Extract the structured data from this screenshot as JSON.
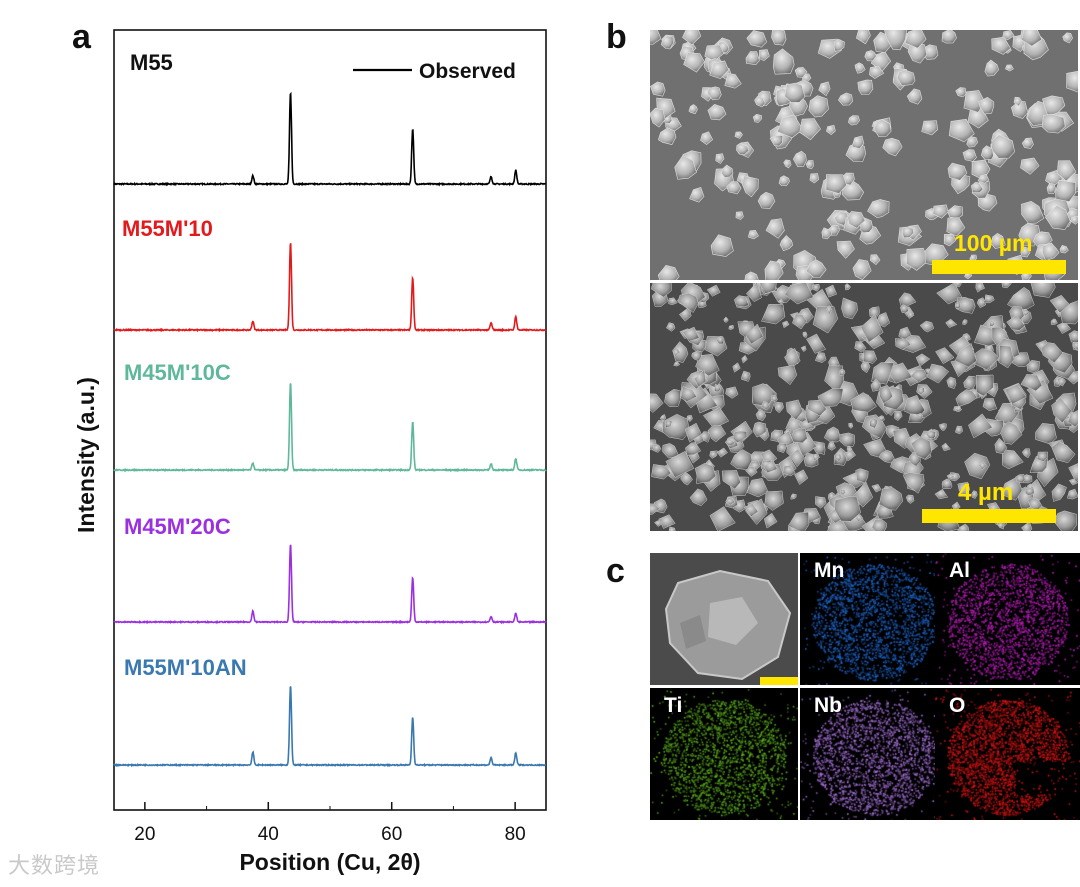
{
  "figure": {
    "panels": {
      "a": "a",
      "b": "b",
      "c": "c"
    }
  },
  "chart_data": {
    "type": "line",
    "title": "",
    "xlabel": "Position (Cu, 2θ)",
    "ylabel": "Intensity (a.u.)",
    "xlim": [
      15,
      85
    ],
    "x_ticks": [
      20,
      40,
      60,
      80
    ],
    "legend": {
      "entry": "Observed",
      "placement": "top-right"
    },
    "peaks_2theta": [
      37.5,
      43.6,
      63.4,
      76.1,
      80.1
    ],
    "series": [
      {
        "name": "M55",
        "color": "#000000",
        "relative_intensities": [
          0.09,
          1.0,
          0.6,
          0.08,
          0.15
        ]
      },
      {
        "name": "M55M'10",
        "color": "#e31a1c",
        "relative_intensities": [
          0.1,
          1.0,
          0.6,
          0.08,
          0.15
        ]
      },
      {
        "name": "M45M'10C",
        "color": "#5fb89a",
        "relative_intensities": [
          0.08,
          1.0,
          0.55,
          0.07,
          0.13
        ]
      },
      {
        "name": "M45M'20C",
        "color": "#9b30e0",
        "relative_intensities": [
          0.14,
          1.0,
          0.57,
          0.07,
          0.11
        ]
      },
      {
        "name": "M55M'10AN",
        "color": "#3a78b0",
        "relative_intensities": [
          0.16,
          1.0,
          0.6,
          0.09,
          0.15
        ]
      }
    ]
  },
  "sem": {
    "top_scale": "100 µm",
    "bottom_scale": "4 µm",
    "scale_color": "#ffe600"
  },
  "eds": {
    "maps": [
      {
        "element": "Mn",
        "color": "#1f64c8"
      },
      {
        "element": "Al",
        "color": "#b41eb4"
      },
      {
        "element": "Ti",
        "color": "#5aaa1e"
      },
      {
        "element": "Nb",
        "color": "#a06ed2"
      },
      {
        "element": "O",
        "color": "#d21414"
      }
    ]
  },
  "watermark": "大数跨境"
}
